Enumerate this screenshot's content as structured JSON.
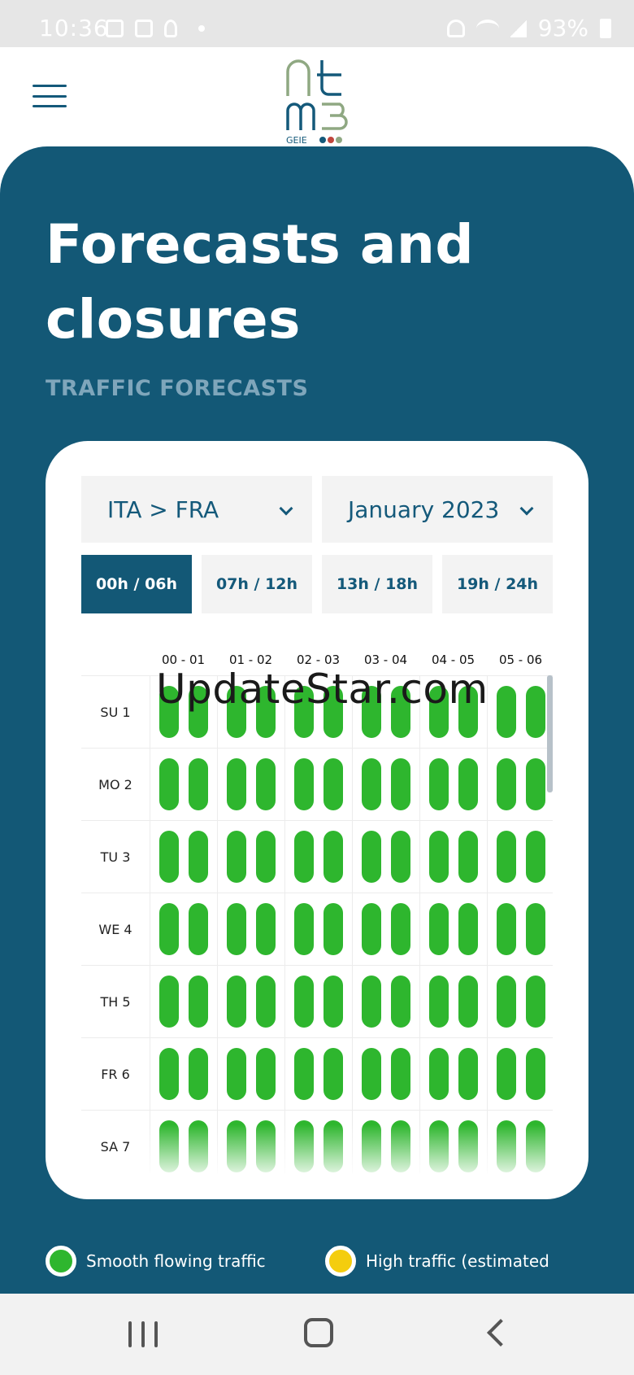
{
  "status_bar": {
    "time": "10:36",
    "battery": "93%"
  },
  "header": {
    "logo_top": "ntm3",
    "logo_sub": "GEIE"
  },
  "page": {
    "title": "Forecasts and closures",
    "subtitle": "TRAFFIC FORECASTS"
  },
  "filters": {
    "route": "ITA > FRA",
    "month": "January 2023"
  },
  "time_tabs": [
    "00h / 06h",
    "07h / 12h",
    "13h / 18h",
    "19h / 24h"
  ],
  "active_tab": 0,
  "hours": [
    "00 - 01",
    "01 - 02",
    "02 - 03",
    "03 - 04",
    "04 - 05",
    "05 - 06"
  ],
  "days": [
    "SU 1",
    "MO 2",
    "TU 3",
    "WE 4",
    "TH 5",
    "FR 6",
    "SA 7"
  ],
  "watermark": "UpdateStar.com",
  "legend": [
    {
      "label": "Smooth flowing traffic",
      "color": "#2eb62e"
    },
    {
      "label": "High traffic (estimated",
      "color": "#f4cd0e"
    }
  ],
  "colors": {
    "primary": "#135876",
    "accent_text": "#14597a",
    "smooth": "#2eb62e"
  }
}
